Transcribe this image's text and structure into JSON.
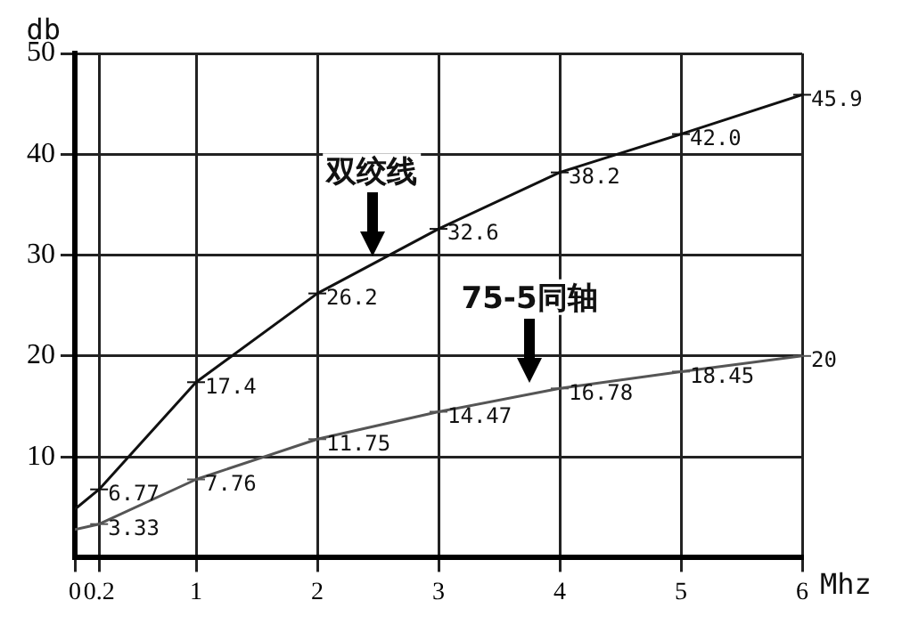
{
  "chart_data": {
    "type": "line",
    "xlabel": "Mhz",
    "ylabel": "db",
    "xlim": [
      0,
      6
    ],
    "ylim": [
      0,
      50
    ],
    "xticks": [
      0,
      0.2,
      1,
      2,
      3,
      4,
      5,
      6
    ],
    "yticks": [
      10,
      20,
      30,
      40,
      50
    ],
    "grid": true,
    "legend": false,
    "marker": "none",
    "line_style": "solid",
    "series": [
      {
        "color": "#111111",
        "x": [
          0,
          0.2,
          1,
          2,
          3,
          4,
          5,
          6
        ],
        "values": [
          4.8,
          6.77,
          17.4,
          26.2,
          32.6,
          38.2,
          42.0,
          45.9
        ],
        "value_labels": [
          null,
          "6.77",
          "17.4",
          "26.2",
          "32.6",
          "38.2",
          "42.0",
          "45.9"
        ]
      },
      {
        "color": "#555555",
        "x": [
          0,
          0.2,
          1,
          2,
          3,
          4,
          5,
          6
        ],
        "values": [
          2.8,
          3.33,
          7.76,
          11.75,
          14.47,
          16.78,
          18.45,
          20
        ],
        "value_labels": [
          null,
          "3.33",
          "7.76",
          "11.75",
          "14.47",
          "16.78",
          "18.45",
          "20"
        ]
      }
    ],
    "annotations": [
      {
        "text": "双绞线",
        "x": 2.45,
        "y": 29.5
      },
      {
        "text": "75-5同轴",
        "x": 3.75,
        "y": 17
      }
    ]
  }
}
